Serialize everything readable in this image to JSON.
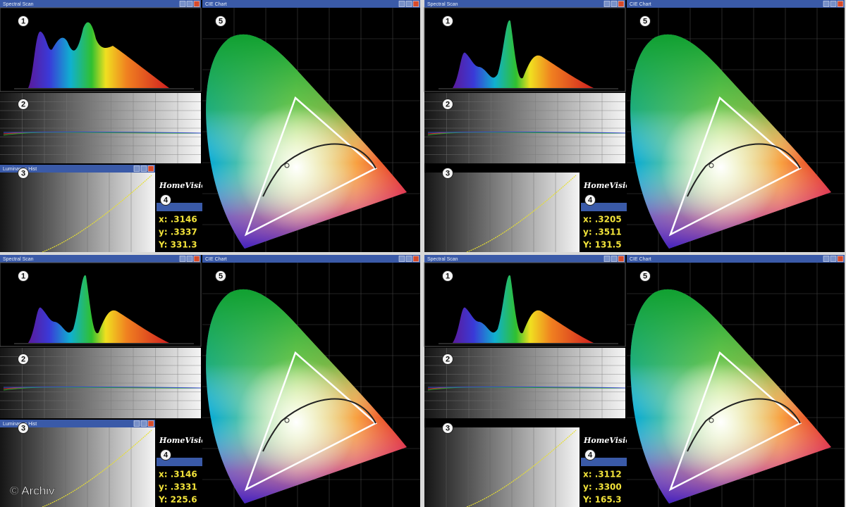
{
  "panels": [
    {
      "spectral_title": "Spectral Scan",
      "cie_title": "CIE Chart",
      "hist_title": "Luminance Hist",
      "logo": "HomeVision",
      "markers": [
        "1",
        "2",
        "3",
        "4",
        "5"
      ],
      "readout": [
        "x: .3146",
        "y: .3337",
        "Y: 331.3"
      ]
    },
    {
      "spectral_title": "Spectral Scan",
      "cie_title": "CIE Chart",
      "logo": "HomeVision",
      "markers": [
        "1",
        "2",
        "3",
        "4",
        "5"
      ],
      "readout": [
        "x: .3205",
        "y: .3511",
        "Y: 131.5"
      ]
    },
    {
      "spectral_title": "Spectral Scan",
      "cie_title": "CIE Chart",
      "hist_title": "Luminance Hist",
      "logo": "HomeVision",
      "markers": [
        "1",
        "2",
        "3",
        "4",
        "5"
      ],
      "readout": [
        "x: .3146",
        "y: .3331",
        "Y: 225.6"
      ]
    },
    {
      "spectral_title": "Spectral Scan",
      "cie_title": "CIE Chart",
      "logo": "HomeVision",
      "markers": [
        "1",
        "2",
        "3",
        "4",
        "5"
      ],
      "readout": [
        "x: .3112",
        "y: .3300",
        "Y: 165.3"
      ]
    }
  ],
  "credit": "© Archiv"
}
